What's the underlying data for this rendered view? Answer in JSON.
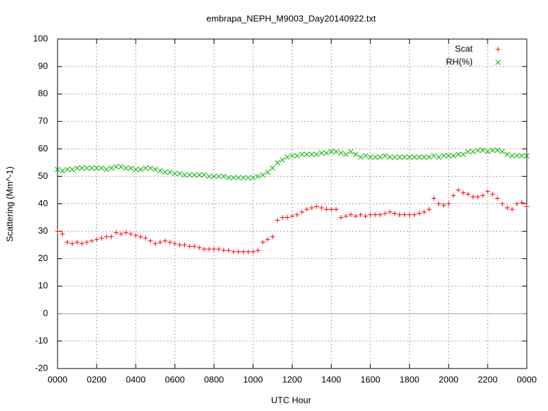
{
  "chart_data": {
    "type": "scatter",
    "title": "embrapa_NEPH_M9003_Day20140922.txt",
    "x_label": "UTC Hour",
    "y_label": "Scattering (Mm^-1)",
    "x": [
      0,
      0.25,
      0.5,
      0.75,
      1,
      1.25,
      1.5,
      1.75,
      2,
      2.25,
      2.5,
      2.75,
      3,
      3.25,
      3.5,
      3.75,
      4,
      4.25,
      4.5,
      4.75,
      5,
      5.25,
      5.5,
      5.75,
      6,
      6.25,
      6.5,
      6.75,
      7,
      7.25,
      7.5,
      7.75,
      8,
      8.25,
      8.5,
      8.75,
      9,
      9.25,
      9.5,
      9.75,
      10,
      10.25,
      10.5,
      10.75,
      11,
      11.25,
      11.5,
      11.75,
      12,
      12.25,
      12.5,
      12.75,
      13,
      13.25,
      13.5,
      13.75,
      14,
      14.25,
      14.5,
      14.75,
      15,
      15.25,
      15.5,
      15.75,
      16,
      16.25,
      16.5,
      16.75,
      17,
      17.25,
      17.5,
      17.75,
      18,
      18.25,
      18.5,
      18.75,
      19,
      19.25,
      19.5,
      19.75,
      20,
      20.25,
      20.5,
      20.75,
      21,
      21.25,
      21.5,
      21.75,
      22,
      22.25,
      22.5,
      22.75,
      23,
      23.25,
      23.5,
      23.75,
      24
    ],
    "series": [
      {
        "name": "Scat",
        "color": "#ff0000",
        "marker": "plus",
        "values": [
          30,
          29,
          26,
          25.5,
          26,
          25.5,
          26,
          26.5,
          27,
          27.5,
          28,
          28,
          29.5,
          29,
          29.5,
          29,
          28.5,
          28,
          27.5,
          26.5,
          25.5,
          26,
          26.5,
          26,
          25.5,
          25,
          25,
          24.5,
          24.5,
          24,
          23.5,
          23.5,
          23.5,
          23.5,
          23,
          23,
          22.5,
          22.5,
          22.5,
          22.5,
          22.5,
          23,
          26,
          27,
          28,
          34,
          35,
          35,
          35.5,
          36,
          37,
          38,
          38.5,
          39,
          38.5,
          38,
          38,
          38,
          35,
          35.5,
          36,
          35.5,
          36,
          35.5,
          36,
          36,
          36,
          36.5,
          37,
          36.5,
          36,
          36,
          36,
          36,
          36.5,
          37,
          38,
          42,
          40,
          39.5,
          40,
          43,
          45,
          44,
          43.5,
          42.5,
          42.5,
          43,
          44.5,
          43.5,
          42,
          40,
          38.5,
          38,
          40,
          40.5,
          39
        ]
      },
      {
        "name": "RH(%)",
        "color": "#00b000",
        "marker": "cross",
        "values": [
          52.5,
          52,
          52.5,
          52.5,
          53,
          53,
          53,
          53,
          53,
          53,
          52.5,
          53,
          53.5,
          53.5,
          53,
          53,
          52.5,
          52.5,
          53,
          53,
          52.5,
          52,
          51.5,
          51.5,
          51,
          51,
          50.5,
          50.5,
          50.5,
          50.5,
          50.5,
          50,
          50,
          50,
          50,
          49.5,
          49.5,
          49.5,
          49.5,
          49.5,
          49.5,
          50,
          50.5,
          51.5,
          53,
          55,
          56,
          57,
          57.5,
          57.5,
          58,
          58,
          58,
          58,
          58.5,
          58.5,
          59,
          59,
          58.5,
          58,
          59,
          58,
          57,
          57.5,
          57,
          57,
          57,
          57.5,
          57,
          57,
          57,
          57,
          57,
          57,
          57,
          57,
          57,
          57.5,
          57,
          57.5,
          57.5,
          57.5,
          58,
          58,
          59,
          59,
          59.5,
          59.5,
          59,
          59.5,
          59.5,
          59,
          58,
          57.5,
          57.5,
          57.5,
          57.5
        ]
      }
    ],
    "xlim": [
      0,
      24
    ],
    "xticks": [
      {
        "value": 0,
        "label": "0000"
      },
      {
        "value": 2,
        "label": "0200"
      },
      {
        "value": 4,
        "label": "0400"
      },
      {
        "value": 6,
        "label": "0600"
      },
      {
        "value": 8,
        "label": "0800"
      },
      {
        "value": 10,
        "label": "1000"
      },
      {
        "value": 12,
        "label": "1200"
      },
      {
        "value": 14,
        "label": "1400"
      },
      {
        "value": 16,
        "label": "1600"
      },
      {
        "value": 18,
        "label": "1800"
      },
      {
        "value": 20,
        "label": "2000"
      },
      {
        "value": 22,
        "label": "2200"
      },
      {
        "value": 24,
        "label": "0000"
      }
    ],
    "ylim": [
      -20,
      100
    ],
    "yticks": [
      -20,
      -10,
      0,
      10,
      20,
      30,
      40,
      50,
      60,
      70,
      80,
      90,
      100
    ],
    "grid": true,
    "zero_line": true,
    "legend": "top-right"
  }
}
